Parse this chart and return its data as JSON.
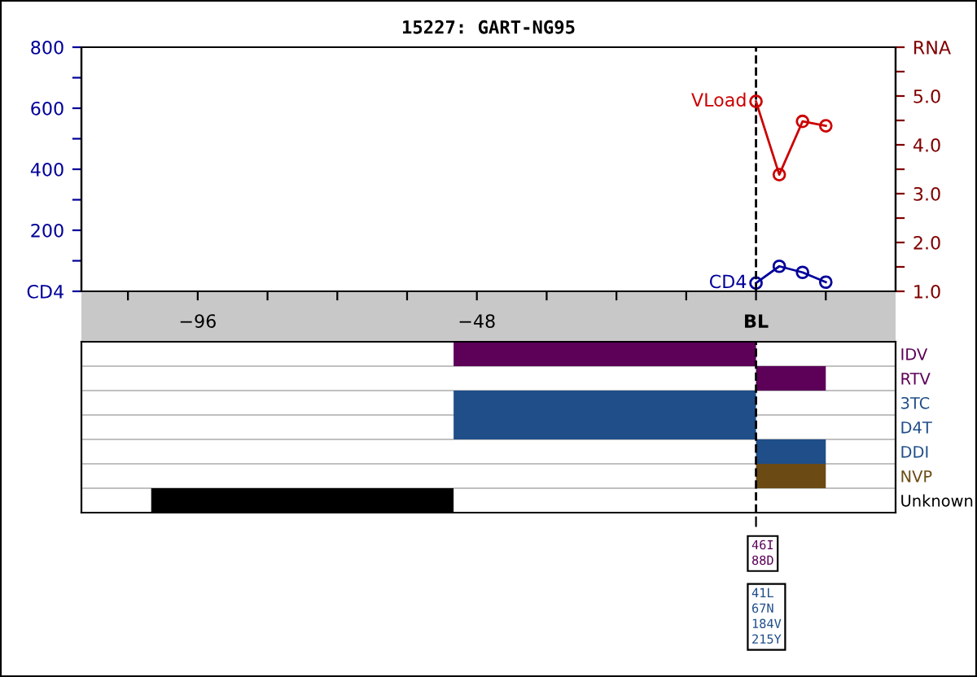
{
  "chart_data": [
    {
      "type": "line",
      "title": "15227: GART-NG95",
      "x": [
        0,
        4,
        8,
        12
      ],
      "series": [
        {
          "name": "VLoad",
          "color": "#cc0000",
          "axis": "y2",
          "values": [
            4.89,
            3.39,
            4.48,
            4.39
          ]
        },
        {
          "name": "CD4",
          "color": "#000099",
          "values": [
            27,
            82,
            62,
            30
          ]
        }
      ],
      "xlim": [
        -116,
        24
      ],
      "xticks": [
        {
          "value": -108,
          "label": null
        },
        {
          "value": -96,
          "label": "−96"
        },
        {
          "value": -84,
          "label": null
        },
        {
          "value": -72,
          "label": null
        },
        {
          "value": -60,
          "label": null
        },
        {
          "value": -48,
          "label": "−48"
        },
        {
          "value": -36,
          "label": null
        },
        {
          "value": -24,
          "label": null
        },
        {
          "value": -12,
          "label": null
        },
        {
          "value": 0,
          "label": "BL"
        },
        {
          "value": 12,
          "label": null
        }
      ],
      "ylim": [
        0,
        800
      ],
      "yticks": [
        {
          "value": 0,
          "label": "CD4"
        },
        {
          "value": 100,
          "label": null
        },
        200,
        {
          "value": 300,
          "label": null
        },
        400,
        {
          "value": 500,
          "label": null
        },
        600,
        {
          "value": 700,
          "label": null
        },
        800
      ],
      "y2lim": [
        1,
        6
      ],
      "y2ticks": [
        {
          "value": 1,
          "label": "1.0"
        },
        {
          "value": 1.5,
          "label": null
        },
        {
          "value": 2,
          "label": "2.0"
        },
        {
          "value": 2.5,
          "label": null
        },
        {
          "value": 3,
          "label": "3.0"
        },
        {
          "value": 3.5,
          "label": null
        },
        {
          "value": 4,
          "label": "4.0"
        },
        {
          "value": 4.5,
          "label": null
        },
        {
          "value": 5,
          "label": "5.0"
        },
        {
          "value": 5.5,
          "label": null
        },
        {
          "value": 6,
          "label": "RNA"
        }
      ],
      "marker": "circle",
      "ref_lines": [
        {
          "axis": "x",
          "value": 0,
          "label": null,
          "color": "#000000",
          "line_style": "dashed"
        }
      ]
    },
    {
      "type": "bar",
      "orientation": "horizontal",
      "categories": [
        "IDV",
        "RTV",
        "3TC",
        "D4T",
        "DDI",
        "NVP",
        "Unknown"
      ],
      "base": [
        -52,
        0,
        -52,
        -52,
        0,
        0,
        -104
      ],
      "values": [
        52,
        12,
        52,
        52,
        12,
        12,
        52
      ],
      "colors": [
        "#5c0058",
        "#5c0058",
        "#1f4e89",
        "#1f4e89",
        "#1f4e89",
        "#6b4a14",
        "#000000"
      ],
      "xlim": [
        -116,
        24
      ],
      "tick_labels": "y",
      "grid": "y",
      "ref_lines": [
        {
          "axis": "x",
          "value": 0,
          "label": null,
          "color": "#000000",
          "line_style": "dashed"
        }
      ],
      "annotations": [
        "46I\n88D",
        "41L\n67N\n184V\n215Y"
      ]
    }
  ]
}
